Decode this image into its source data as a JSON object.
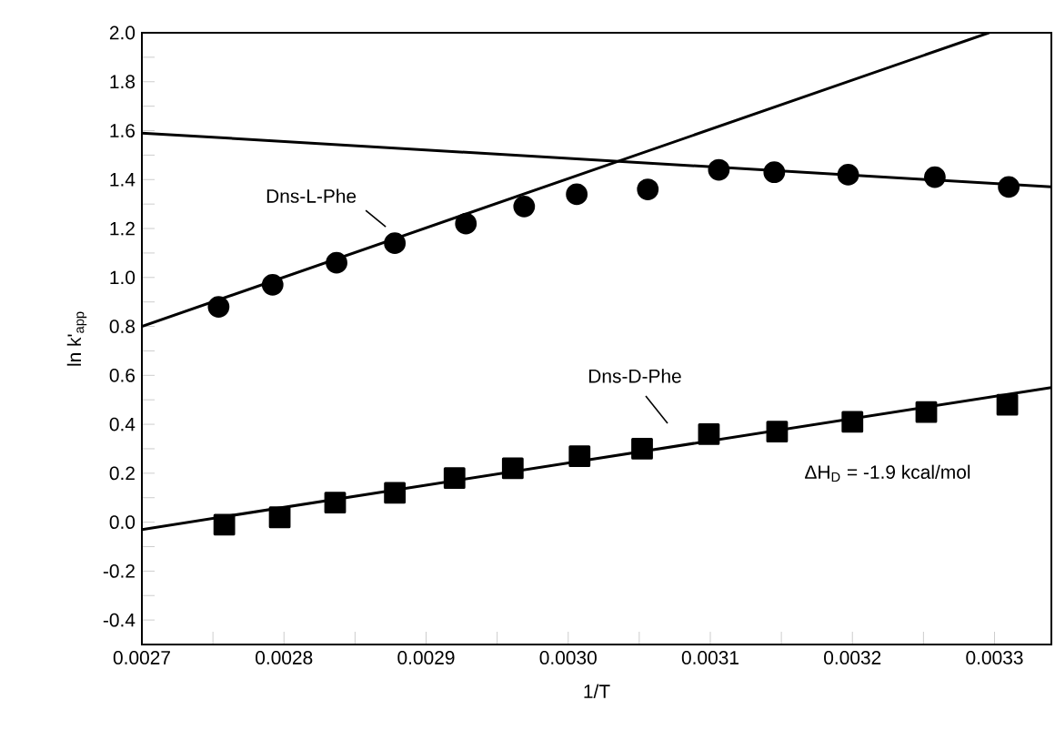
{
  "chart_data": {
    "type": "scatter",
    "xlabel": "1/T",
    "ylabel": "ln k'$_{app}$",
    "annotations": [
      "ΔH$_{D}$ = -1.9 kcal/mol"
    ],
    "xlim": [
      0.0027,
      0.00334
    ],
    "ylim": [
      -0.5,
      2.0
    ],
    "xticks": [
      0.0027,
      {
        "value": 0.00275,
        "label": null
      },
      0.0028,
      {
        "value": 0.00285,
        "label": null
      },
      0.0029,
      {
        "value": 0.00295,
        "label": null
      },
      {
        "value": 0.003,
        "label": "0.0030"
      },
      {
        "value": 0.00305,
        "label": null
      },
      0.0031,
      {
        "value": 0.00315,
        "label": null
      },
      0.0032,
      {
        "value": 0.00325,
        "label": null
      },
      0.0033
    ],
    "yticks": [
      {
        "value": -0.4,
        "label": "-0.4"
      },
      {
        "value": -0.3,
        "label": null
      },
      {
        "value": -0.2,
        "label": "-0.2"
      },
      {
        "value": -0.1,
        "label": null
      },
      {
        "value": 0,
        "label": "0.0"
      },
      {
        "value": 0.1,
        "label": null
      },
      {
        "value": 0.2,
        "label": "0.2"
      },
      {
        "value": 0.3,
        "label": null
      },
      {
        "value": 0.4,
        "label": "0.4"
      },
      {
        "value": 0.5,
        "label": null
      },
      {
        "value": 0.6,
        "label": "0.6"
      },
      {
        "value": 0.7,
        "label": null
      },
      {
        "value": 0.8,
        "label": "0.8"
      },
      {
        "value": 0.9,
        "label": null
      },
      {
        "value": 1.0,
        "label": "1.0"
      },
      {
        "value": 1.1,
        "label": null
      },
      {
        "value": 1.2,
        "label": "1.2"
      },
      {
        "value": 1.3,
        "label": null
      },
      {
        "value": 1.4,
        "label": "1.4"
      },
      {
        "value": 1.5,
        "label": null
      },
      {
        "value": 1.6,
        "label": "1.6"
      },
      {
        "value": 1.7,
        "label": null
      },
      {
        "value": 1.8,
        "label": "1.8"
      },
      {
        "value": 1.9,
        "label": null
      },
      {
        "value": 2.0,
        "label": "2.0"
      }
    ],
    "series": [
      {
        "name": "Dns-L-Phe",
        "marker": "circle",
        "color": "#000000",
        "x": [
          0.002754,
          0.002792,
          0.002837,
          0.002878,
          0.002928,
          0.002969,
          0.003006,
          0.003056,
          0.003106,
          0.003145,
          0.003197,
          0.003258,
          0.00331
        ],
        "values": [
          0.88,
          0.97,
          1.06,
          1.14,
          1.22,
          1.29,
          1.34,
          1.36,
          1.44,
          1.43,
          1.42,
          1.41,
          1.37
        ]
      },
      {
        "name": "Dns-D-Phe",
        "marker": "square",
        "color": "#000000",
        "x": [
          0.002758,
          0.002797,
          0.002836,
          0.002878,
          0.00292,
          0.002961,
          0.003008,
          0.003052,
          0.003099,
          0.003147,
          0.0032,
          0.003252,
          0.003309
        ],
        "values": [
          -0.01,
          0.02,
          0.08,
          0.12,
          0.18,
          0.22,
          0.27,
          0.3,
          0.36,
          0.37,
          0.41,
          0.45,
          0.48
        ]
      },
      {
        "type": "line",
        "color": "#000000",
        "marker": "none",
        "x": [
          0.0027,
          0.003296
        ],
        "values": [
          0.8,
          2.0
        ]
      },
      {
        "type": "line",
        "color": "#000000",
        "marker": "none",
        "x": [
          0.0027,
          0.00334
        ],
        "values": [
          1.59,
          1.37
        ]
      },
      {
        "type": "line",
        "color": "#000000",
        "marker": "none",
        "x": [
          0.0027,
          0.00334
        ],
        "values": [
          -0.03,
          0.55
        ]
      }
    ]
  }
}
